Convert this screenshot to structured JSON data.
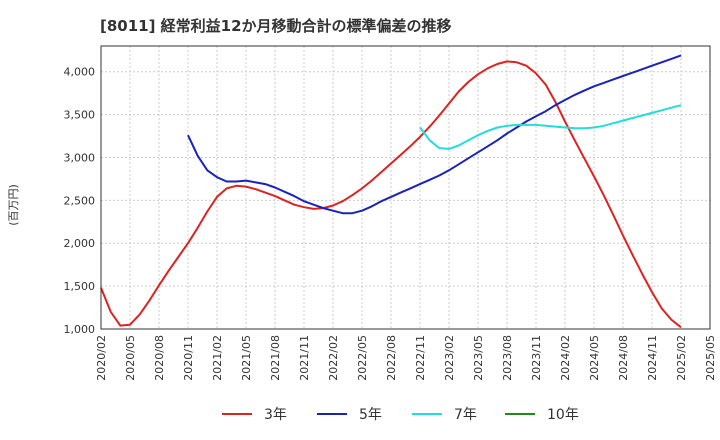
{
  "chart_data": {
    "type": "line",
    "title": "[8011]  経常利益12か月移動合計の標準偏差の推移",
    "ylabel": "(百万円)",
    "ylim": [
      1000,
      4300
    ],
    "yticks": [
      1000,
      1500,
      2000,
      2500,
      3000,
      3500,
      4000
    ],
    "ytick_labels": [
      "1,000",
      "1,500",
      "2,000",
      "2,500",
      "3,000",
      "3,500",
      "4,000"
    ],
    "xlim": [
      "2020-02",
      "2025-05"
    ],
    "xtick_labels": [
      "2020/02",
      "2020/05",
      "2020/08",
      "2020/11",
      "2021/02",
      "2021/05",
      "2021/08",
      "2021/11",
      "2022/02",
      "2022/05",
      "2022/08",
      "2022/11",
      "2023/02",
      "2023/05",
      "2023/08",
      "2023/11",
      "2024/02",
      "2024/05",
      "2024/08",
      "2024/11",
      "2025/02",
      "2025/05"
    ],
    "grid": true,
    "legend_position": "bottom",
    "series": [
      {
        "name": "3年",
        "color": "#dd2222",
        "x": [
          "2020-02",
          "2020-03",
          "2020-04",
          "2020-05",
          "2020-06",
          "2020-07",
          "2020-08",
          "2020-09",
          "2020-10",
          "2020-11",
          "2020-12",
          "2021-01",
          "2021-02",
          "2021-03",
          "2021-04",
          "2021-05",
          "2021-06",
          "2021-07",
          "2021-08",
          "2021-09",
          "2021-10",
          "2021-11",
          "2021-12",
          "2022-01",
          "2022-02",
          "2022-03",
          "2022-04",
          "2022-05",
          "2022-06",
          "2022-07",
          "2022-08",
          "2022-09",
          "2022-10",
          "2022-11",
          "2022-12",
          "2023-01",
          "2023-02",
          "2023-03",
          "2023-04",
          "2023-05",
          "2023-06",
          "2023-07",
          "2023-08",
          "2023-09",
          "2023-10",
          "2023-11",
          "2023-12",
          "2024-01",
          "2024-02",
          "2024-03",
          "2024-04",
          "2024-05",
          "2024-06",
          "2024-07",
          "2024-08",
          "2024-09",
          "2024-10",
          "2024-11",
          "2024-12",
          "2025-01",
          "2025-02"
        ],
        "values": [
          1480,
          1200,
          1040,
          1050,
          1170,
          1330,
          1510,
          1680,
          1840,
          2000,
          2180,
          2370,
          2540,
          2640,
          2670,
          2660,
          2630,
          2590,
          2550,
          2500,
          2450,
          2420,
          2400,
          2410,
          2440,
          2490,
          2560,
          2640,
          2730,
          2830,
          2930,
          3030,
          3130,
          3240,
          3360,
          3490,
          3630,
          3770,
          3880,
          3970,
          4040,
          4090,
          4120,
          4110,
          4070,
          3980,
          3850,
          3650,
          3420,
          3200,
          2990,
          2780,
          2560,
          2330,
          2090,
          1860,
          1640,
          1430,
          1240,
          1110,
          1020
        ]
      },
      {
        "name": "5年",
        "color": "#1a22bb",
        "x": [
          "2020-11",
          "2020-12",
          "2021-01",
          "2021-02",
          "2021-03",
          "2021-04",
          "2021-05",
          "2021-06",
          "2021-07",
          "2021-08",
          "2021-09",
          "2021-10",
          "2021-11",
          "2021-12",
          "2022-01",
          "2022-02",
          "2022-03",
          "2022-04",
          "2022-05",
          "2022-06",
          "2022-07",
          "2022-08",
          "2022-09",
          "2022-10",
          "2022-11",
          "2022-12",
          "2023-01",
          "2023-02",
          "2023-03",
          "2023-04",
          "2023-05",
          "2023-06",
          "2023-07",
          "2023-08",
          "2023-09",
          "2023-10",
          "2023-11",
          "2023-12",
          "2024-01",
          "2024-02",
          "2024-03",
          "2024-04",
          "2024-05",
          "2024-06",
          "2024-07",
          "2024-08",
          "2024-09",
          "2024-10",
          "2024-11",
          "2024-12",
          "2025-01",
          "2025-02"
        ],
        "values": [
          3260,
          3020,
          2850,
          2770,
          2720,
          2720,
          2730,
          2710,
          2690,
          2650,
          2600,
          2550,
          2490,
          2450,
          2410,
          2380,
          2350,
          2350,
          2380,
          2430,
          2490,
          2540,
          2590,
          2640,
          2690,
          2740,
          2790,
          2850,
          2920,
          2990,
          3060,
          3130,
          3200,
          3280,
          3350,
          3420,
          3480,
          3540,
          3610,
          3670,
          3730,
          3780,
          3830,
          3870,
          3910,
          3950,
          3990,
          4030,
          4070,
          4110,
          4150,
          4190
        ]
      },
      {
        "name": "7年",
        "color": "#22dddd",
        "x": [
          "2022-11",
          "2022-12",
          "2023-01",
          "2023-02",
          "2023-03",
          "2023-04",
          "2023-05",
          "2023-06",
          "2023-07",
          "2023-08",
          "2023-09",
          "2023-10",
          "2023-11",
          "2023-12",
          "2024-01",
          "2024-02",
          "2024-03",
          "2024-04",
          "2024-05",
          "2024-06",
          "2024-07",
          "2024-08",
          "2024-09",
          "2024-10",
          "2024-11",
          "2024-12",
          "2025-01",
          "2025-02"
        ],
        "values": [
          3350,
          3200,
          3110,
          3100,
          3140,
          3200,
          3260,
          3310,
          3350,
          3370,
          3380,
          3380,
          3380,
          3370,
          3360,
          3350,
          3340,
          3340,
          3350,
          3370,
          3400,
          3430,
          3460,
          3490,
          3520,
          3550,
          3580,
          3610
        ]
      },
      {
        "name": "10年",
        "color": "#228822",
        "x": [],
        "values": []
      }
    ]
  }
}
